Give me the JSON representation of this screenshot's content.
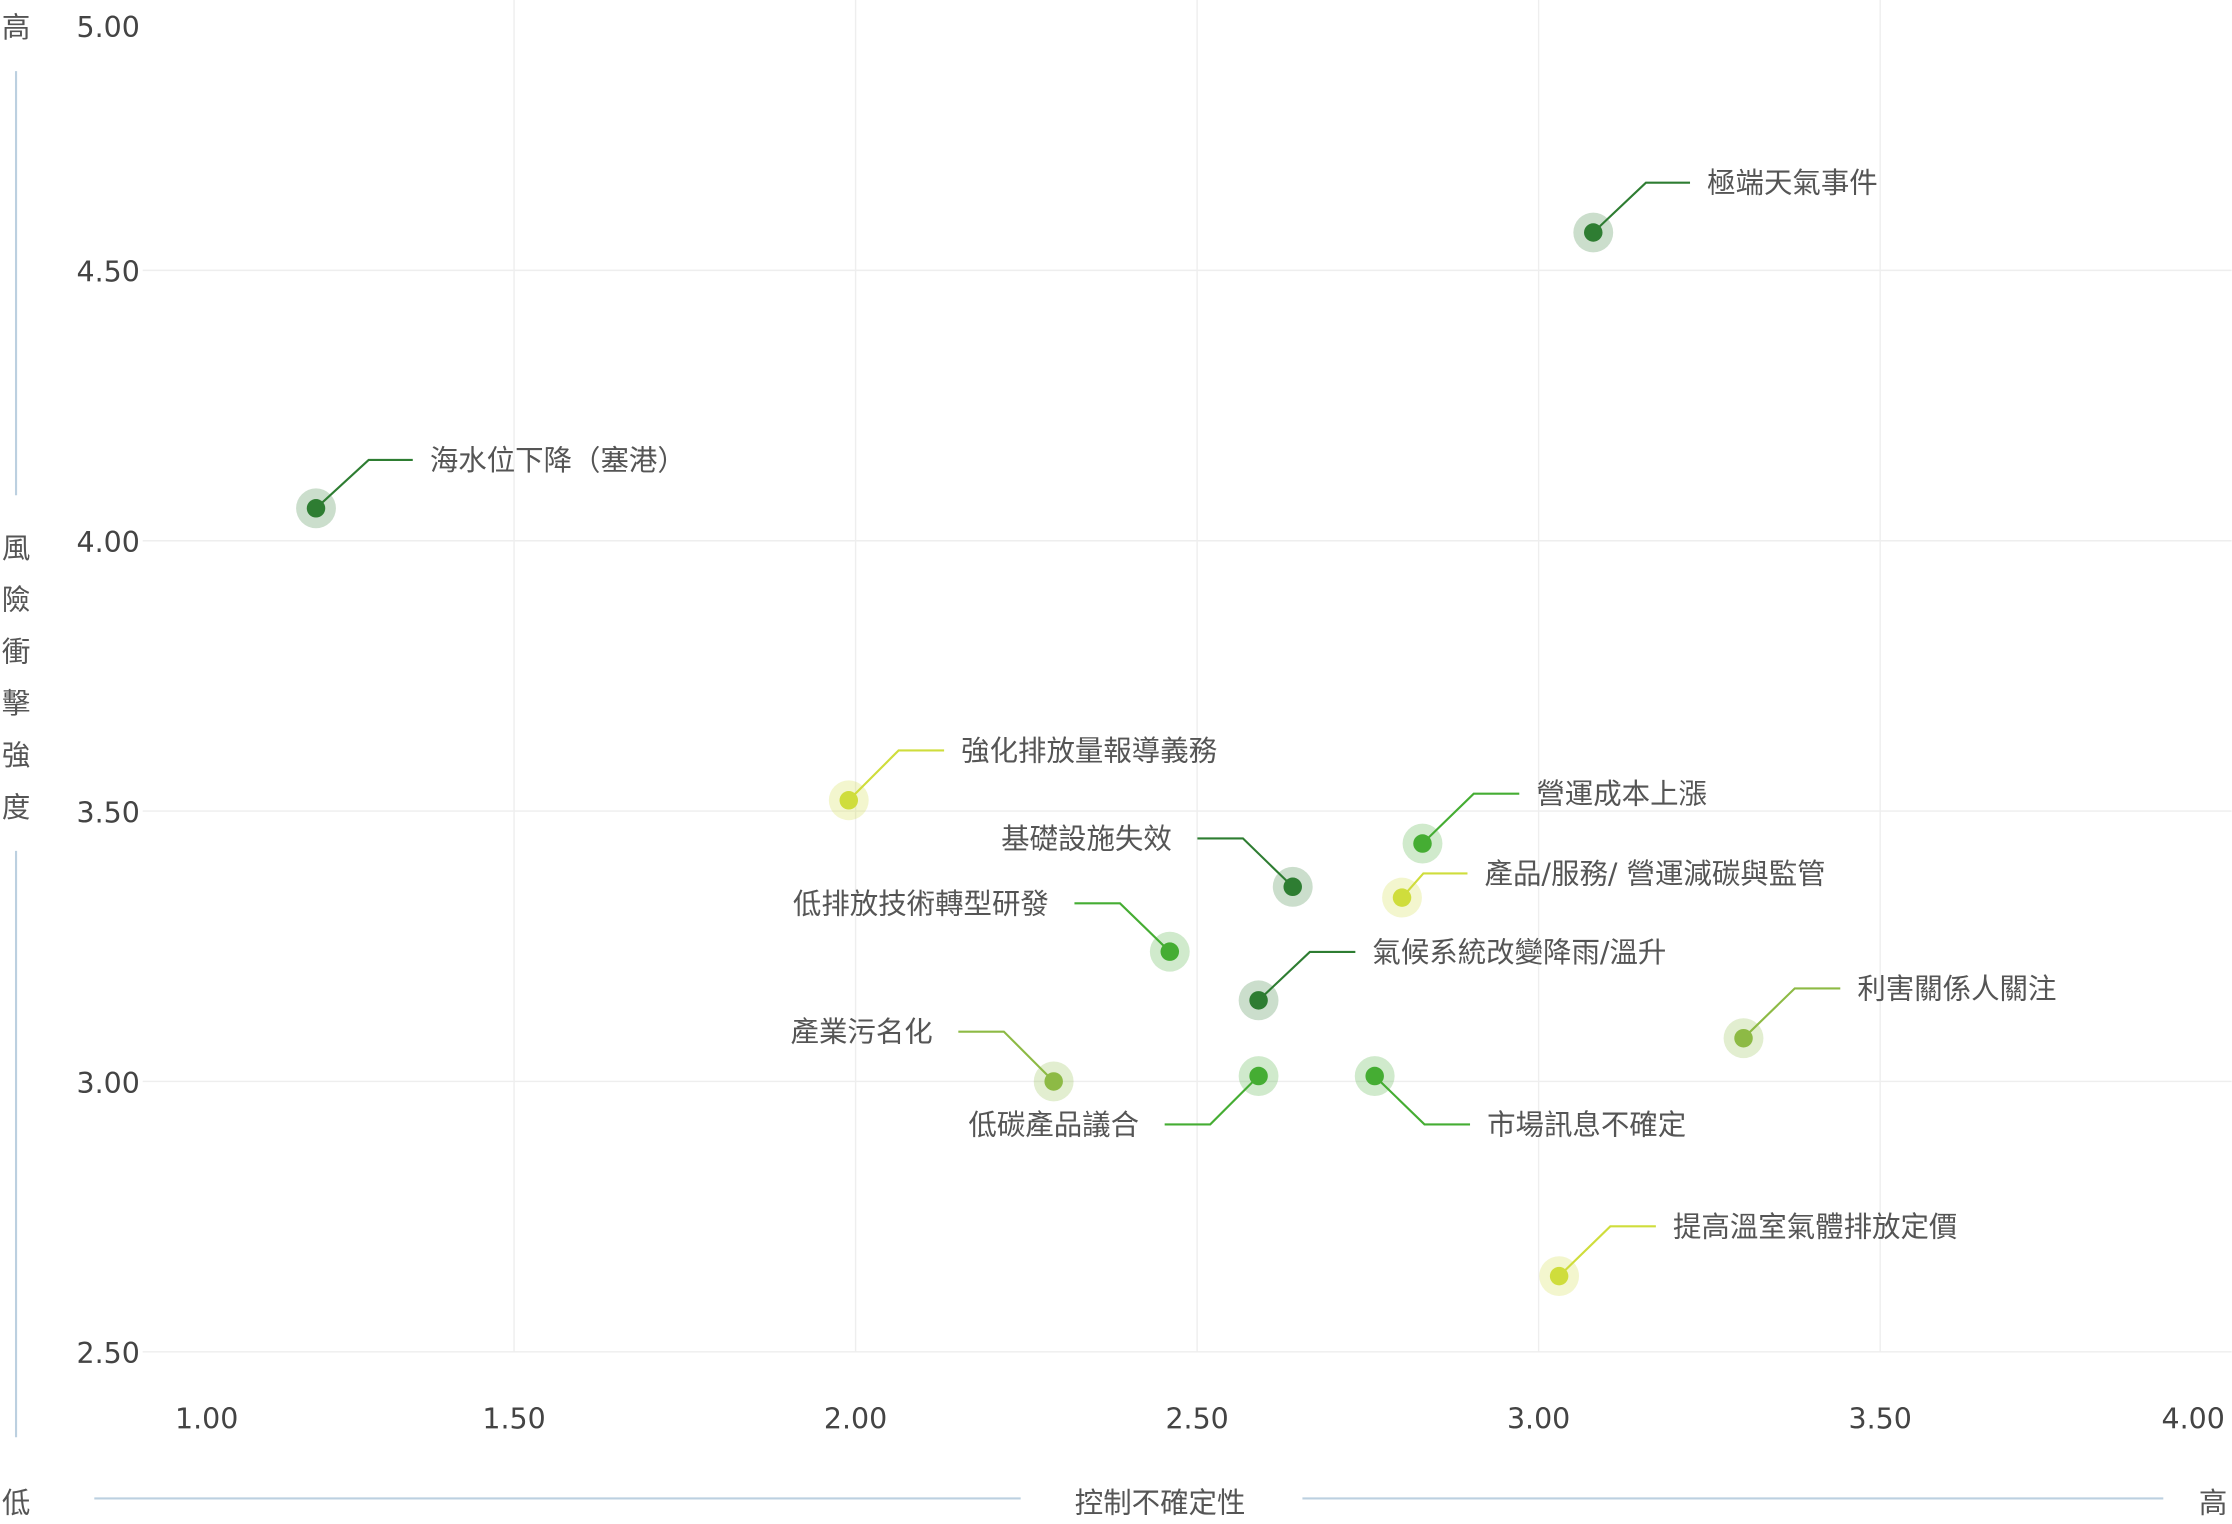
{
  "chart_data": {
    "type": "scatter",
    "title": "",
    "xlabel": "控制不確定性",
    "ylabel": "風險衝擊強度",
    "x_low_label": "低",
    "x_high_label": "高",
    "y_high_label": "高",
    "xlim": [
      1.0,
      4.0
    ],
    "ylim": [
      2.5,
      5.0
    ],
    "x_ticks": [
      "1.00",
      "1.50",
      "2.00",
      "2.50",
      "3.00",
      "3.50",
      "4.00"
    ],
    "y_ticks": [
      "5.00",
      "4.50",
      "4.00",
      "3.50",
      "3.00",
      "2.50"
    ],
    "grid": true,
    "colors": {
      "dark_green": "#2e7d32",
      "green": "#45ad33",
      "olive": "#8dba45",
      "yellow_green": "#cfdd3c",
      "axis_line": "#bcd0e0",
      "grid": "#eeeeee"
    },
    "points": [
      {
        "label": "極端天氣事件",
        "x": 3.08,
        "y": 4.57,
        "color": "dark_green"
      },
      {
        "label": "海水位下降（塞港）",
        "x": 1.21,
        "y": 4.06,
        "color": "dark_green"
      },
      {
        "label": "強化排放量報導義務",
        "x": 1.99,
        "y": 3.52,
        "color": "yellow_green"
      },
      {
        "label": "營運成本上漲",
        "x": 2.83,
        "y": 3.44,
        "color": "green"
      },
      {
        "label": "基礎設施失效",
        "x": 2.64,
        "y": 3.36,
        "color": "dark_green"
      },
      {
        "label": "產品/服務/ 營運減碳與監管",
        "x": 2.8,
        "y": 3.34,
        "color": "yellow_green"
      },
      {
        "label": "低排放技術轉型研發",
        "x": 2.46,
        "y": 3.24,
        "color": "green"
      },
      {
        "label": "氣候系統改變降雨/溫升",
        "x": 2.59,
        "y": 3.15,
        "color": "dark_green"
      },
      {
        "label": "利害關係人關注",
        "x": 3.3,
        "y": 3.08,
        "color": "olive"
      },
      {
        "label": "產業污名化",
        "x": 2.29,
        "y": 3.0,
        "color": "olive"
      },
      {
        "label": "低碳產品議合",
        "x": 2.59,
        "y": 3.01,
        "color": "green"
      },
      {
        "label": "市場訊息不確定",
        "x": 2.76,
        "y": 3.01,
        "color": "green"
      },
      {
        "label": "提高溫室氣體排放定價",
        "x": 3.03,
        "y": 2.64,
        "color": "yellow_green"
      }
    ]
  }
}
